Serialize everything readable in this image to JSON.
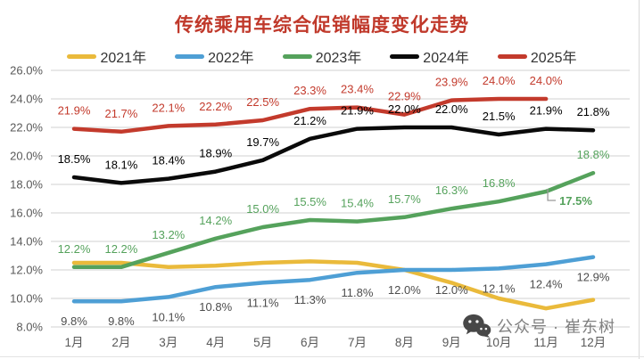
{
  "title": {
    "text": "传统乘用车综合促销幅度变化走势",
    "color": "#C0392B"
  },
  "watermark": {
    "text": "公众号 · 崔东树",
    "icon": "wechat-icon",
    "color": "#808080"
  },
  "axis_style": {
    "grid_color": "#d9d9d9",
    "tick_color": "#595959"
  },
  "chart_data": {
    "type": "line",
    "title": "传统乘用车综合促销幅度变化走势",
    "categories": [
      "1月",
      "2月",
      "3月",
      "4月",
      "5月",
      "6月",
      "7月",
      "8月",
      "9月",
      "10月",
      "11月",
      "12月"
    ],
    "xlabel": "",
    "ylabel": "",
    "ylim": [
      8,
      26
    ],
    "ytick_step": 2,
    "ytick_format": "0.0%",
    "grid": "horizontal",
    "legend_position": "top",
    "series": [
      {
        "name": "2021年",
        "color": "#EABA3B",
        "data_labels": false,
        "label_position": "none",
        "values": [
          12.5,
          12.5,
          12.2,
          12.3,
          12.5,
          12.6,
          12.5,
          12.0,
          11.1,
          10.0,
          9.3,
          9.9
        ]
      },
      {
        "name": "2022年",
        "color": "#4E9FD5",
        "data_labels": true,
        "label_position": "below",
        "label_color": "#4d4d4d",
        "values": [
          9.8,
          9.8,
          10.1,
          10.8,
          11.1,
          11.3,
          11.8,
          12.0,
          12.0,
          12.1,
          12.4,
          12.9
        ]
      },
      {
        "name": "2023年",
        "color": "#55A25C",
        "data_labels": true,
        "label_position": "above",
        "callout_index": 10,
        "values": [
          12.2,
          12.2,
          13.2,
          14.2,
          15.0,
          15.5,
          15.4,
          15.7,
          16.3,
          16.8,
          17.5,
          18.8
        ]
      },
      {
        "name": "2024年",
        "color": "#0a0a0a",
        "data_labels": true,
        "label_position": "above",
        "label_color": "#000000",
        "values": [
          18.5,
          18.1,
          18.4,
          18.9,
          19.7,
          21.2,
          21.9,
          22.0,
          22.0,
          21.5,
          21.9,
          21.8
        ]
      },
      {
        "name": "2025年",
        "color": "#C33A2C",
        "data_labels": true,
        "label_position": "above",
        "values": [
          21.9,
          21.7,
          22.1,
          22.2,
          22.5,
          23.3,
          23.4,
          22.9,
          23.9,
          24.0,
          24.0
        ]
      }
    ]
  }
}
